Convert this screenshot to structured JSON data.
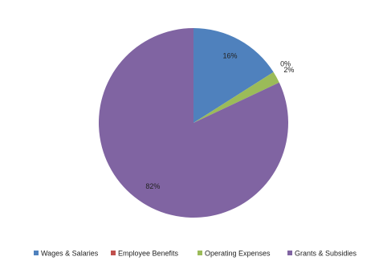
{
  "chart_data": {
    "type": "pie",
    "categories": [
      "Wages & Salaries",
      "Employee Benefits",
      "Operating Expenses",
      "Grants & Subsidies"
    ],
    "values": [
      16,
      0,
      2,
      82
    ],
    "value_labels": [
      "16%",
      "0%",
      "2%",
      "82%"
    ],
    "colors": [
      "#4f81bd",
      "#c0504d",
      "#9bbb59",
      "#8064a2"
    ],
    "legend": "bottom"
  }
}
